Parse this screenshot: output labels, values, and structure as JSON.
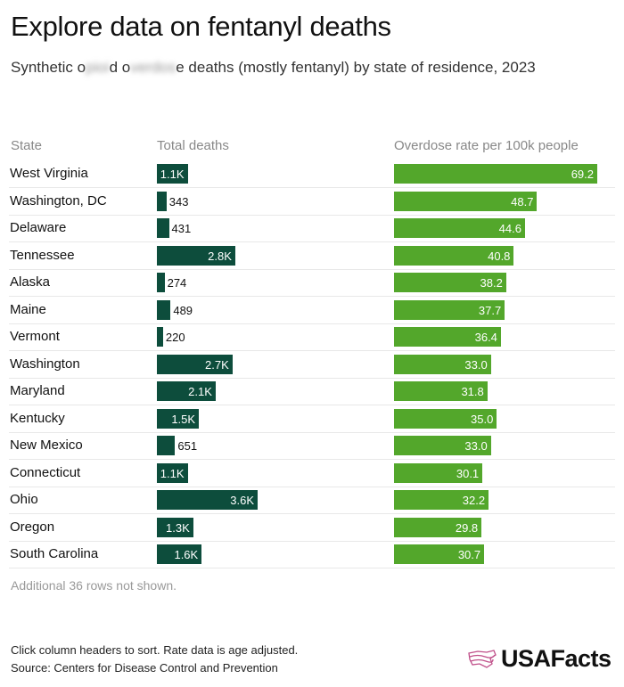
{
  "title": "Explore data on fentanyl deaths",
  "subtitle": {
    "pre": "Synthetic o",
    "blur1": "pioi",
    "mid": "d o",
    "blur2": "verdos",
    "post": "e deaths (mostly fentanyl) by state of residence, 2023"
  },
  "chart_data": {
    "type": "table",
    "columns": [
      "State",
      "Total deaths",
      "Overdose rate per 100k people"
    ],
    "rows": [
      {
        "state": "West Virginia",
        "deaths": 1100,
        "deaths_label": "1.1K",
        "rate": 69.2
      },
      {
        "state": "Washington, DC",
        "deaths": 343,
        "deaths_label": "343",
        "rate": 48.7
      },
      {
        "state": "Delaware",
        "deaths": 431,
        "deaths_label": "431",
        "rate": 44.6
      },
      {
        "state": "Tennessee",
        "deaths": 2800,
        "deaths_label": "2.8K",
        "rate": 40.8
      },
      {
        "state": "Alaska",
        "deaths": 274,
        "deaths_label": "274",
        "rate": 38.2
      },
      {
        "state": "Maine",
        "deaths": 489,
        "deaths_label": "489",
        "rate": 37.7
      },
      {
        "state": "Vermont",
        "deaths": 220,
        "deaths_label": "220",
        "rate": 36.4
      },
      {
        "state": "Washington",
        "deaths": 2700,
        "deaths_label": "2.7K",
        "rate": 33.0
      },
      {
        "state": "Maryland",
        "deaths": 2100,
        "deaths_label": "2.1K",
        "rate": 31.8
      },
      {
        "state": "Kentucky",
        "deaths": 1500,
        "deaths_label": "1.5K",
        "rate": 35.0
      },
      {
        "state": "New Mexico",
        "deaths": 651,
        "deaths_label": "651",
        "rate": 33.0
      },
      {
        "state": "Connecticut",
        "deaths": 1100,
        "deaths_label": "1.1K",
        "rate": 30.1
      },
      {
        "state": "Ohio",
        "deaths": 3600,
        "deaths_label": "3.6K",
        "rate": 32.2
      },
      {
        "state": "Oregon",
        "deaths": 1300,
        "deaths_label": "1.3K",
        "rate": 29.8
      },
      {
        "state": "South Carolina",
        "deaths": 1600,
        "deaths_label": "1.6K",
        "rate": 30.7
      }
    ],
    "colors": {
      "deaths": "#0d4d3c",
      "rate": "#53a72b"
    }
  },
  "note": "Additional 36 rows not shown.",
  "footer": {
    "line1": "Click column headers to sort. Rate data is age adjusted.",
    "line2": "Source: Centers for Disease Control and Prevention"
  },
  "logo": "USAFacts"
}
